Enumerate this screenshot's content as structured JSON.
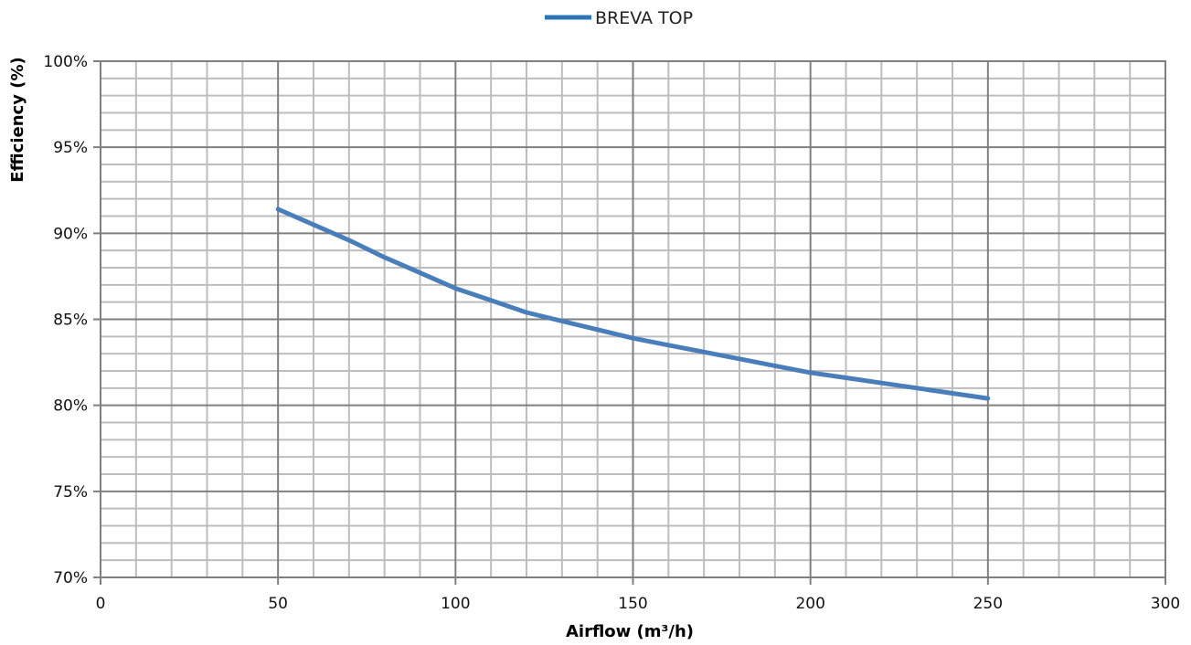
{
  "chart_data": {
    "type": "line",
    "title": "",
    "xlabel": "Airflow (m³/h)",
    "ylabel": "Efficiency  (%)",
    "xlim": [
      0,
      300
    ],
    "ylim": [
      70,
      100
    ],
    "x_ticks": [
      "0",
      "50",
      "100",
      "150",
      "200",
      "250",
      "300"
    ],
    "y_ticks": [
      "70%",
      "75%",
      "80%",
      "85%",
      "90%",
      "95%",
      "100%"
    ],
    "x_minor_step": 10,
    "y_minor_step": 1,
    "grid": true,
    "legend_position": "top-center",
    "series": [
      {
        "name": "BREVA TOP",
        "color": "#4a7ebb",
        "x": [
          50,
          60,
          70,
          80,
          90,
          100,
          110,
          120,
          130,
          140,
          150,
          160,
          170,
          180,
          190,
          200,
          210,
          220,
          230,
          240,
          250
        ],
        "y": [
          91.4,
          90.5,
          89.6,
          88.6,
          87.7,
          86.8,
          86.1,
          85.4,
          84.9,
          84.4,
          83.9,
          83.5,
          83.1,
          82.7,
          82.3,
          81.9,
          81.6,
          81.3,
          81.0,
          80.7,
          80.4
        ]
      }
    ]
  }
}
